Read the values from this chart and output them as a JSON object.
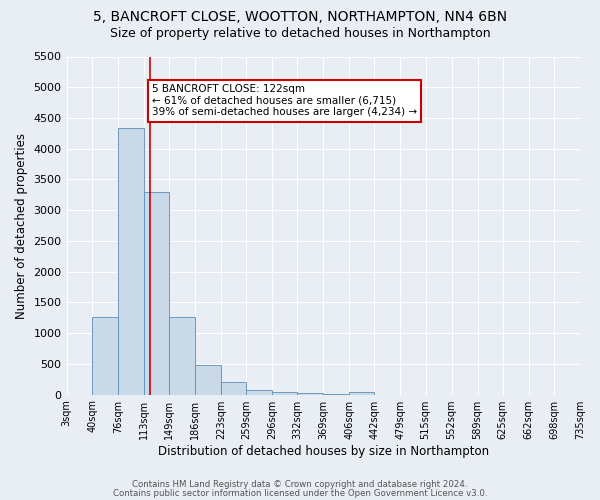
{
  "title": "5, BANCROFT CLOSE, WOOTTON, NORTHAMPTON, NN4 6BN",
  "subtitle": "Size of property relative to detached houses in Northampton",
  "xlabel": "Distribution of detached houses by size in Northampton",
  "ylabel": "Number of detached properties",
  "bar_edges": [
    3,
    40,
    76,
    113,
    149,
    186,
    223,
    259,
    296,
    332,
    369,
    406,
    442,
    479,
    515,
    552,
    589,
    625,
    662,
    698,
    735
  ],
  "bar_heights": [
    0,
    1260,
    4330,
    3290,
    1270,
    480,
    210,
    80,
    45,
    20,
    10,
    45,
    0,
    0,
    0,
    0,
    0,
    0,
    0,
    0
  ],
  "bar_color": "#c9d9e8",
  "bar_edgecolor": "#5b8db8",
  "vline_x": 122,
  "vline_color": "#cc0000",
  "annotation_text": "5 BANCROFT CLOSE: 122sqm\n← 61% of detached houses are smaller (6,715)\n39% of semi-detached houses are larger (4,234) →",
  "annotation_box_color": "white",
  "annotation_box_edgecolor": "#cc0000",
  "ylim": [
    0,
    5500
  ],
  "yticks": [
    0,
    500,
    1000,
    1500,
    2000,
    2500,
    3000,
    3500,
    4000,
    4500,
    5000,
    5500
  ],
  "bg_color": "#e8eef4",
  "footer1": "Contains HM Land Registry data © Crown copyright and database right 2024.",
  "footer2": "Contains public sector information licensed under the Open Government Licence v3.0.",
  "title_fontsize": 10,
  "subtitle_fontsize": 9,
  "xlabel_fontsize": 8.5,
  "ylabel_fontsize": 8.5,
  "annotation_fontsize": 7.5,
  "tick_fontsize": 7,
  "ytick_fontsize": 8
}
